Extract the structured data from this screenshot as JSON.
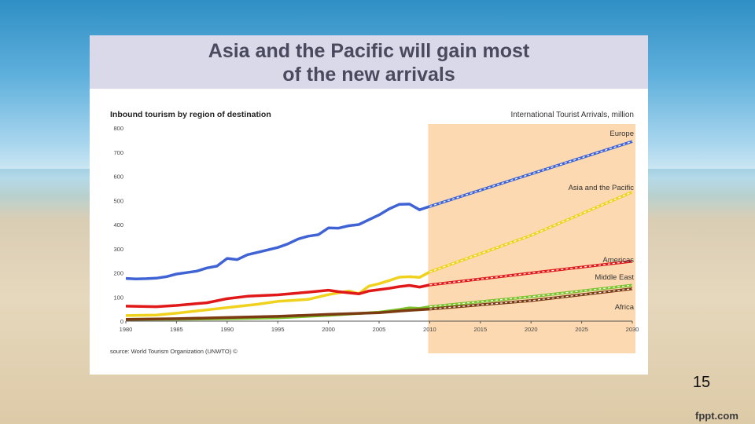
{
  "slide": {
    "title_line1": "Asia and the Pacific will gain most",
    "title_line2": "of the new arrivals",
    "number": "15",
    "brand": "fppt.com"
  },
  "chart_data": {
    "type": "line",
    "title": "Inbound tourism by region of destination",
    "subtitle": "International Tourist Arrivals, million",
    "source": "source: World Tourism Organization (UNWTO) ©",
    "ylim": [
      0,
      800
    ],
    "yticks": [
      0,
      100,
      200,
      300,
      400,
      500,
      600,
      700,
      800
    ],
    "xlim": [
      1980,
      2030
    ],
    "xticks": [
      1980,
      1985,
      1990,
      1995,
      2000,
      2005,
      2010,
      2015,
      2020,
      2025,
      2030
    ],
    "forecast_start": 2010,
    "forecast_color": "#fcd9b0",
    "series": [
      {
        "name": "Europe",
        "color": "#3f63d4",
        "actual": [
          [
            1980,
            177
          ],
          [
            1981,
            175
          ],
          [
            1982,
            176
          ],
          [
            1983,
            178
          ],
          [
            1984,
            184
          ],
          [
            1985,
            195
          ],
          [
            1986,
            201
          ],
          [
            1987,
            207
          ],
          [
            1988,
            220
          ],
          [
            1989,
            228
          ],
          [
            1990,
            260
          ],
          [
            1991,
            255
          ],
          [
            1992,
            275
          ],
          [
            1993,
            285
          ],
          [
            1994,
            295
          ],
          [
            1995,
            305
          ],
          [
            1996,
            320
          ],
          [
            1997,
            340
          ],
          [
            1998,
            352
          ],
          [
            1999,
            358
          ],
          [
            2000,
            386
          ],
          [
            2001,
            385
          ],
          [
            2002,
            395
          ],
          [
            2003,
            400
          ],
          [
            2004,
            420
          ],
          [
            2005,
            440
          ],
          [
            2006,
            465
          ],
          [
            2007,
            484
          ],
          [
            2008,
            485
          ],
          [
            2009,
            461
          ],
          [
            2010,
            475
          ]
        ],
        "forecast": [
          [
            2010,
            475
          ],
          [
            2030,
            744
          ]
        ]
      },
      {
        "name": "Asia and the Pacific",
        "color": "#f0d21e",
        "actual": [
          [
            1980,
            23
          ],
          [
            1983,
            25
          ],
          [
            1985,
            33
          ],
          [
            1990,
            56
          ],
          [
            1993,
            70
          ],
          [
            1995,
            82
          ],
          [
            1998,
            90
          ],
          [
            2000,
            110
          ],
          [
            2002,
            125
          ],
          [
            2003,
            114
          ],
          [
            2004,
            145
          ],
          [
            2005,
            155
          ],
          [
            2006,
            168
          ],
          [
            2007,
            182
          ],
          [
            2008,
            184
          ],
          [
            2009,
            181
          ],
          [
            2010,
            204
          ]
        ],
        "forecast": [
          [
            2010,
            204
          ],
          [
            2020,
            355
          ],
          [
            2030,
            535
          ]
        ]
      },
      {
        "name": "Americas",
        "color": "#e01818",
        "actual": [
          [
            1980,
            62
          ],
          [
            1983,
            60
          ],
          [
            1985,
            65
          ],
          [
            1988,
            76
          ],
          [
            1990,
            93
          ],
          [
            1992,
            103
          ],
          [
            1995,
            109
          ],
          [
            1998,
            120
          ],
          [
            2000,
            128
          ],
          [
            2001,
            122
          ],
          [
            2003,
            113
          ],
          [
            2004,
            125
          ],
          [
            2006,
            136
          ],
          [
            2007,
            143
          ],
          [
            2008,
            148
          ],
          [
            2009,
            141
          ],
          [
            2010,
            150
          ]
        ],
        "forecast": [
          [
            2010,
            150
          ],
          [
            2020,
            199
          ],
          [
            2030,
            248
          ]
        ]
      },
      {
        "name": "Middle East",
        "color": "#7cc22d",
        "actual": [
          [
            1980,
            7
          ],
          [
            1985,
            8
          ],
          [
            1990,
            10
          ],
          [
            1995,
            14
          ],
          [
            2000,
            24
          ],
          [
            2005,
            37
          ],
          [
            2007,
            48
          ],
          [
            2008,
            55
          ],
          [
            2009,
            53
          ],
          [
            2010,
            60
          ]
        ],
        "forecast": [
          [
            2010,
            60
          ],
          [
            2020,
            101
          ],
          [
            2030,
            149
          ]
        ]
      },
      {
        "name": "Africa",
        "color": "#7b3a10",
        "actual": [
          [
            1980,
            7
          ],
          [
            1985,
            10
          ],
          [
            1990,
            15
          ],
          [
            1995,
            20
          ],
          [
            2000,
            28
          ],
          [
            2005,
            35
          ],
          [
            2008,
            45
          ],
          [
            2010,
            50
          ]
        ],
        "forecast": [
          [
            2010,
            50
          ],
          [
            2020,
            85
          ],
          [
            2030,
            134
          ]
        ]
      }
    ]
  }
}
